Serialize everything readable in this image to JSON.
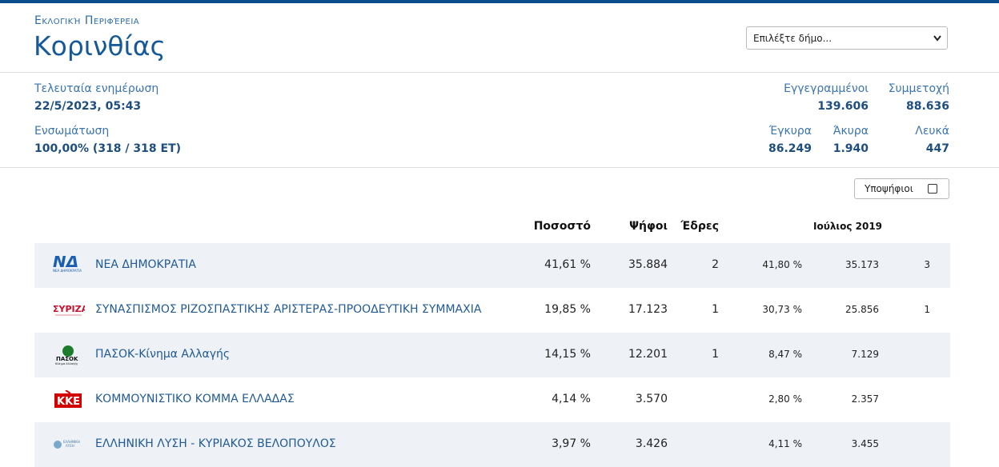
{
  "header": {
    "region_label": "Εκλογική Περιφέρεια",
    "title": "Κορινθίας",
    "select_placeholder": "Επιλέξτε δήμο..."
  },
  "stats": {
    "updated": {
      "label": "Τελευταία ενημέρωση",
      "value": "22/5/2023, 05:43"
    },
    "integration": {
      "label": "Ενσωμάτωση",
      "value": "100,00% (318 / 318 ΕΤ)"
    },
    "registered": {
      "label": "Εγγεγραμμένοι",
      "value": "139.606"
    },
    "turnout": {
      "label": "Συμμετοχή",
      "value": "88.636"
    },
    "valid": {
      "label": "Έγκυρα",
      "value": "86.249"
    },
    "invalid": {
      "label": "Άκυρα",
      "value": "1.940"
    },
    "blank": {
      "label": "Λευκά",
      "value": "447"
    }
  },
  "candidates_toggle": "Υποψήφιοι",
  "table": {
    "headers": {
      "pct": "Ποσοστό",
      "votes": "Ψήφοι",
      "seats": "Έδρες",
      "previous": "Ιούλιος 2019"
    },
    "rows": [
      {
        "name": "ΝΕΑ ΔΗΜΟΚΡΑΤΙΑ",
        "pct": "41,61 %",
        "votes": "35.884",
        "seats": "2",
        "pct_2019": "41,80 %",
        "votes_2019": "35.173",
        "seats_2019": "3"
      },
      {
        "name": "ΣΥΝΑΣΠΙΣΜΟΣ ΡΙΖΟΣΠΑΣΤΙΚΗΣ ΑΡΙΣΤΕΡΑΣ-ΠΡΟΟΔΕΥΤΙΚΗ ΣΥΜΜΑΧΙΑ",
        "pct": "19,85 %",
        "votes": "17.123",
        "seats": "1",
        "pct_2019": "30,73 %",
        "votes_2019": "25.856",
        "seats_2019": "1"
      },
      {
        "name": "ΠΑΣΟΚ-Κίνημα Αλλαγής",
        "pct": "14,15 %",
        "votes": "12.201",
        "seats": "1",
        "pct_2019": "8,47 %",
        "votes_2019": "7.129"
      },
      {
        "name": "ΚΟΜΜΟΥΝΙΣΤΙΚΟ ΚΟΜΜΑ ΕΛΛΑΔΑΣ",
        "pct": "4,14 %",
        "votes": "3.570",
        "pct_2019": "2,80 %",
        "votes_2019": "2.357"
      },
      {
        "name": "ΕΛΛΗΝΙΚΗ ΛΥΣΗ - ΚΥΡΙΑΚΟΣ ΒΕΛΟΠΟΥΛΟΣ",
        "pct": "3,97 %",
        "votes": "3.426",
        "pct_2019": "4,11 %",
        "votes_2019": "3.455"
      }
    ]
  }
}
